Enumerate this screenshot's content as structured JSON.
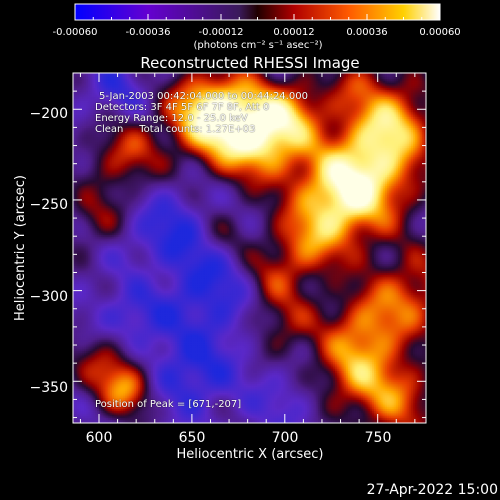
{
  "colorbar": {
    "ticks": [
      "-0.00060",
      "-0.00036",
      "-0.00012",
      "0.00012",
      "0.00036",
      "0.00060"
    ],
    "units": "(photons cm⁻² s⁻¹ asec⁻²)",
    "colors": [
      "#0000ff",
      "#7000c0",
      "#4a1a6a",
      "#c01000",
      "#ff6000",
      "#ffff80",
      "#ffffff"
    ]
  },
  "chart_data": {
    "type": "heatmap",
    "title": "Reconstructed RHESSI Image",
    "xlabel": "Heliocentric X (arcsec)",
    "ylabel": "Heliocentric Y (arcsec)",
    "xlim": [
      586,
      776
    ],
    "ylim": [
      -373,
      -180
    ],
    "xticks": [
      "600",
      "650",
      "700",
      "750"
    ],
    "xtick_values": [
      600,
      650,
      700,
      750
    ],
    "yticks": [
      "−200",
      "−250",
      "−300",
      "−350"
    ],
    "ytick_values": [
      -200,
      -250,
      -300,
      -350
    ],
    "value_range": [
      -0.0006,
      0.0006
    ],
    "peak_position": [
      671,
      -207
    ]
  },
  "info": {
    "time_range": "5-Jan-2003 00:42:04.000 to 00:44:24.000",
    "detectors": "Detectors: 3F 4F 5F 6F 7F 8F, Att 0",
    "energy": "Energy Range: 12.0 - 25.0 keV",
    "clean": "Clean     Total counts: 1.27E+03",
    "peak": "Position of Peak = [671,-207]"
  },
  "timestamp": "27-Apr-2022 15:00"
}
